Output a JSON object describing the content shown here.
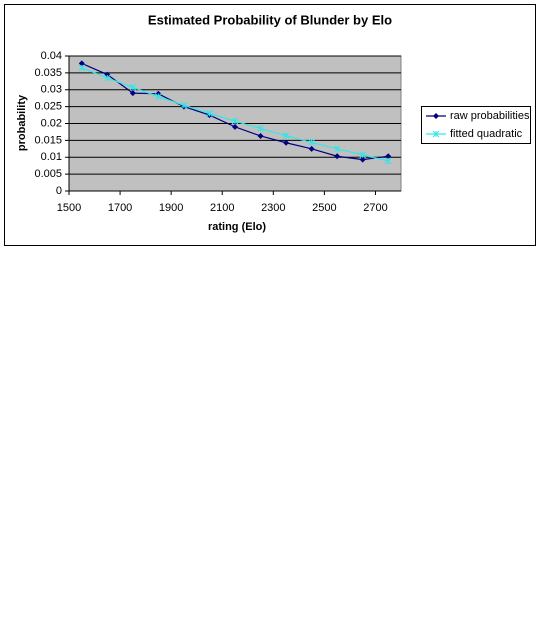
{
  "chart_data": {
    "type": "line",
    "title": "Estimated Probability of Blunder by Elo",
    "x_label": "rating (Elo)",
    "y_label": "probability",
    "x": [
      1550,
      1650,
      1750,
      1850,
      1950,
      2050,
      2150,
      2250,
      2350,
      2450,
      2550,
      2650,
      2750
    ],
    "series": [
      {
        "name": "raw probabilities",
        "color": "#000080",
        "marker": "diamond",
        "values": [
          0.0378,
          0.0345,
          0.029,
          0.0288,
          0.025,
          0.0225,
          0.019,
          0.0163,
          0.0143,
          0.0125,
          0.0103,
          0.0093,
          0.0103
        ]
      },
      {
        "name": "fitted quadratic",
        "color": "#33e6e6",
        "marker": "star",
        "values": [
          0.0365,
          0.0335,
          0.0307,
          0.028,
          0.0254,
          0.023,
          0.0207,
          0.0185,
          0.0164,
          0.0144,
          0.0125,
          0.0107,
          0.0089
        ]
      }
    ],
    "xlim": [
      1500,
      2800
    ],
    "xticks": [
      1500,
      1700,
      1900,
      2100,
      2300,
      2500,
      2700
    ],
    "ylim": [
      0,
      0.04
    ],
    "yticks": [
      0,
      0.005,
      0.01,
      0.015,
      0.02,
      0.025,
      0.03,
      0.035,
      0.04
    ],
    "grid": true,
    "legend": "right"
  }
}
